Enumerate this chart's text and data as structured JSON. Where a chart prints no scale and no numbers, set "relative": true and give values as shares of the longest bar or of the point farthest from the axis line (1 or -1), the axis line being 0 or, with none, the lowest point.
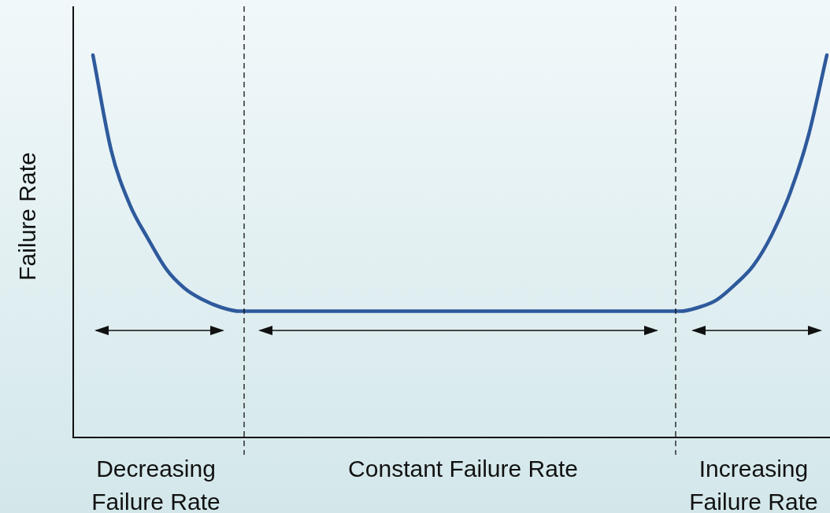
{
  "chart_data": {
    "type": "line",
    "relative": true,
    "ylabel": "Failure Rate",
    "color": "#2e5a9c",
    "marker": "none",
    "legend": false,
    "categories": [
      null,
      null,
      null,
      null,
      null,
      null,
      null,
      null,
      null,
      null,
      null,
      null,
      null,
      null,
      null,
      null,
      null,
      null,
      null,
      null,
      null,
      null,
      null,
      null,
      null,
      null,
      null,
      null,
      null,
      null,
      null,
      null,
      null,
      null,
      null,
      null,
      null,
      null,
      null,
      null,
      null,
      null
    ],
    "values": [
      null,
      1,
      0.75,
      0.61,
      0.52,
      0.44,
      0.39,
      0.36,
      0.34,
      0.33,
      0.33,
      0.33,
      0.33,
      0.33,
      0.33,
      0.33,
      0.33,
      0.33,
      0.33,
      0.33,
      0.33,
      0.33,
      0.33,
      0.33,
      0.33,
      0.33,
      0.33,
      0.33,
      0.33,
      0.33,
      0.33,
      0.33,
      0.33,
      0.33,
      0.34,
      0.36,
      0.4,
      0.45,
      0.53,
      0.64,
      0.79,
      1
    ],
    "annotations": [
      "Decreasing Failure Rate",
      "Constant Failure Rate",
      "Increasing Failure Rate"
    ]
  }
}
